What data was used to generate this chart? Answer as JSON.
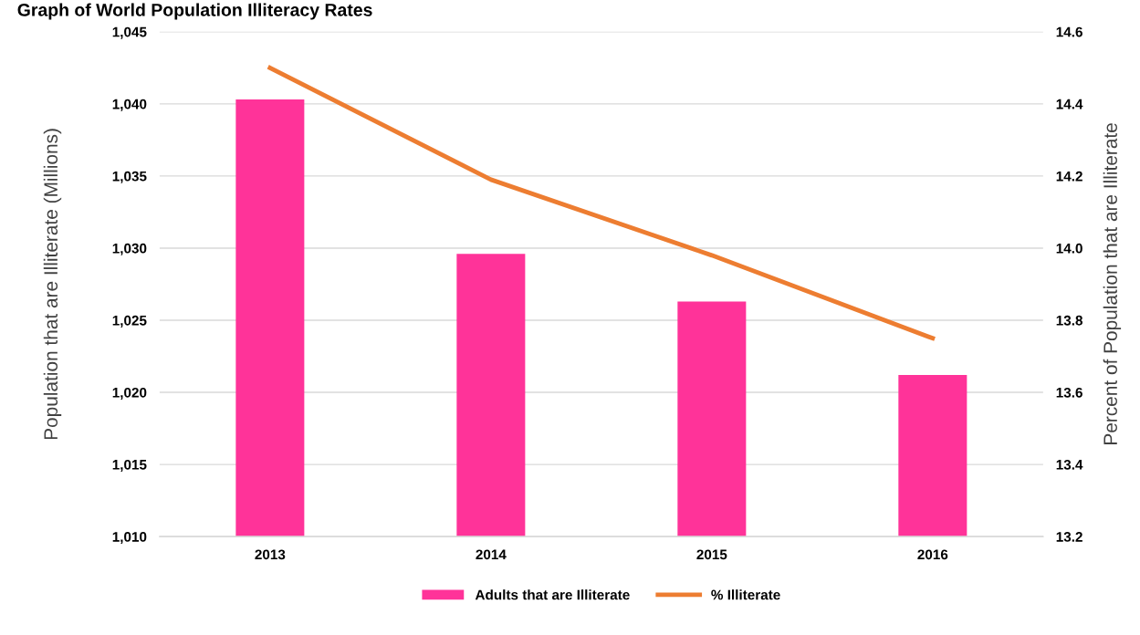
{
  "chart_data": {
    "type": "bar",
    "title": "Graph of World Population Illiteracy Rates",
    "ylabel": "Population that are Illiterate (Millions)",
    "y2label": "Percent of Population that are Illiterate",
    "categories": [
      "2013",
      "2014",
      "2015",
      "2016"
    ],
    "series": [
      {
        "name": "Adults that are Illiterate",
        "color": "#ff3399",
        "values": [
          1040.3,
          1029.6,
          1026.3,
          1021.2
        ]
      },
      {
        "name": "% Illiterate",
        "type": "line",
        "axis": "y2",
        "color": "#ed7d31",
        "values": [
          14.5,
          14.19,
          13.98,
          13.75
        ]
      }
    ],
    "ylim": [
      1010,
      1045
    ],
    "yticks": [
      {
        "value": 1010,
        "label": "1,010"
      },
      {
        "value": 1015,
        "label": "1,015"
      },
      {
        "value": 1020,
        "label": "1,020"
      },
      {
        "value": 1025,
        "label": "1,025"
      },
      {
        "value": 1030,
        "label": "1,030"
      },
      {
        "value": 1035,
        "label": "1,035"
      },
      {
        "value": 1040,
        "label": "1,040"
      },
      {
        "value": 1045,
        "label": "1,045"
      }
    ],
    "y2lim": [
      13.2,
      14.6
    ],
    "y2ticks": [
      {
        "value": 13.2,
        "label": "13.2"
      },
      {
        "value": 13.4,
        "label": "13.4"
      },
      {
        "value": 13.6,
        "label": "13.6"
      },
      {
        "value": 13.8,
        "label": "13.8"
      },
      {
        "value": 14.0,
        "label": "14.0"
      },
      {
        "value": 14.2,
        "label": "14.2"
      },
      {
        "value": 14.4,
        "label": "14.4"
      },
      {
        "value": 14.6,
        "label": "14.6"
      }
    ],
    "grid": "y",
    "legend": "bottom",
    "marker": "none",
    "line_style": "solid"
  }
}
